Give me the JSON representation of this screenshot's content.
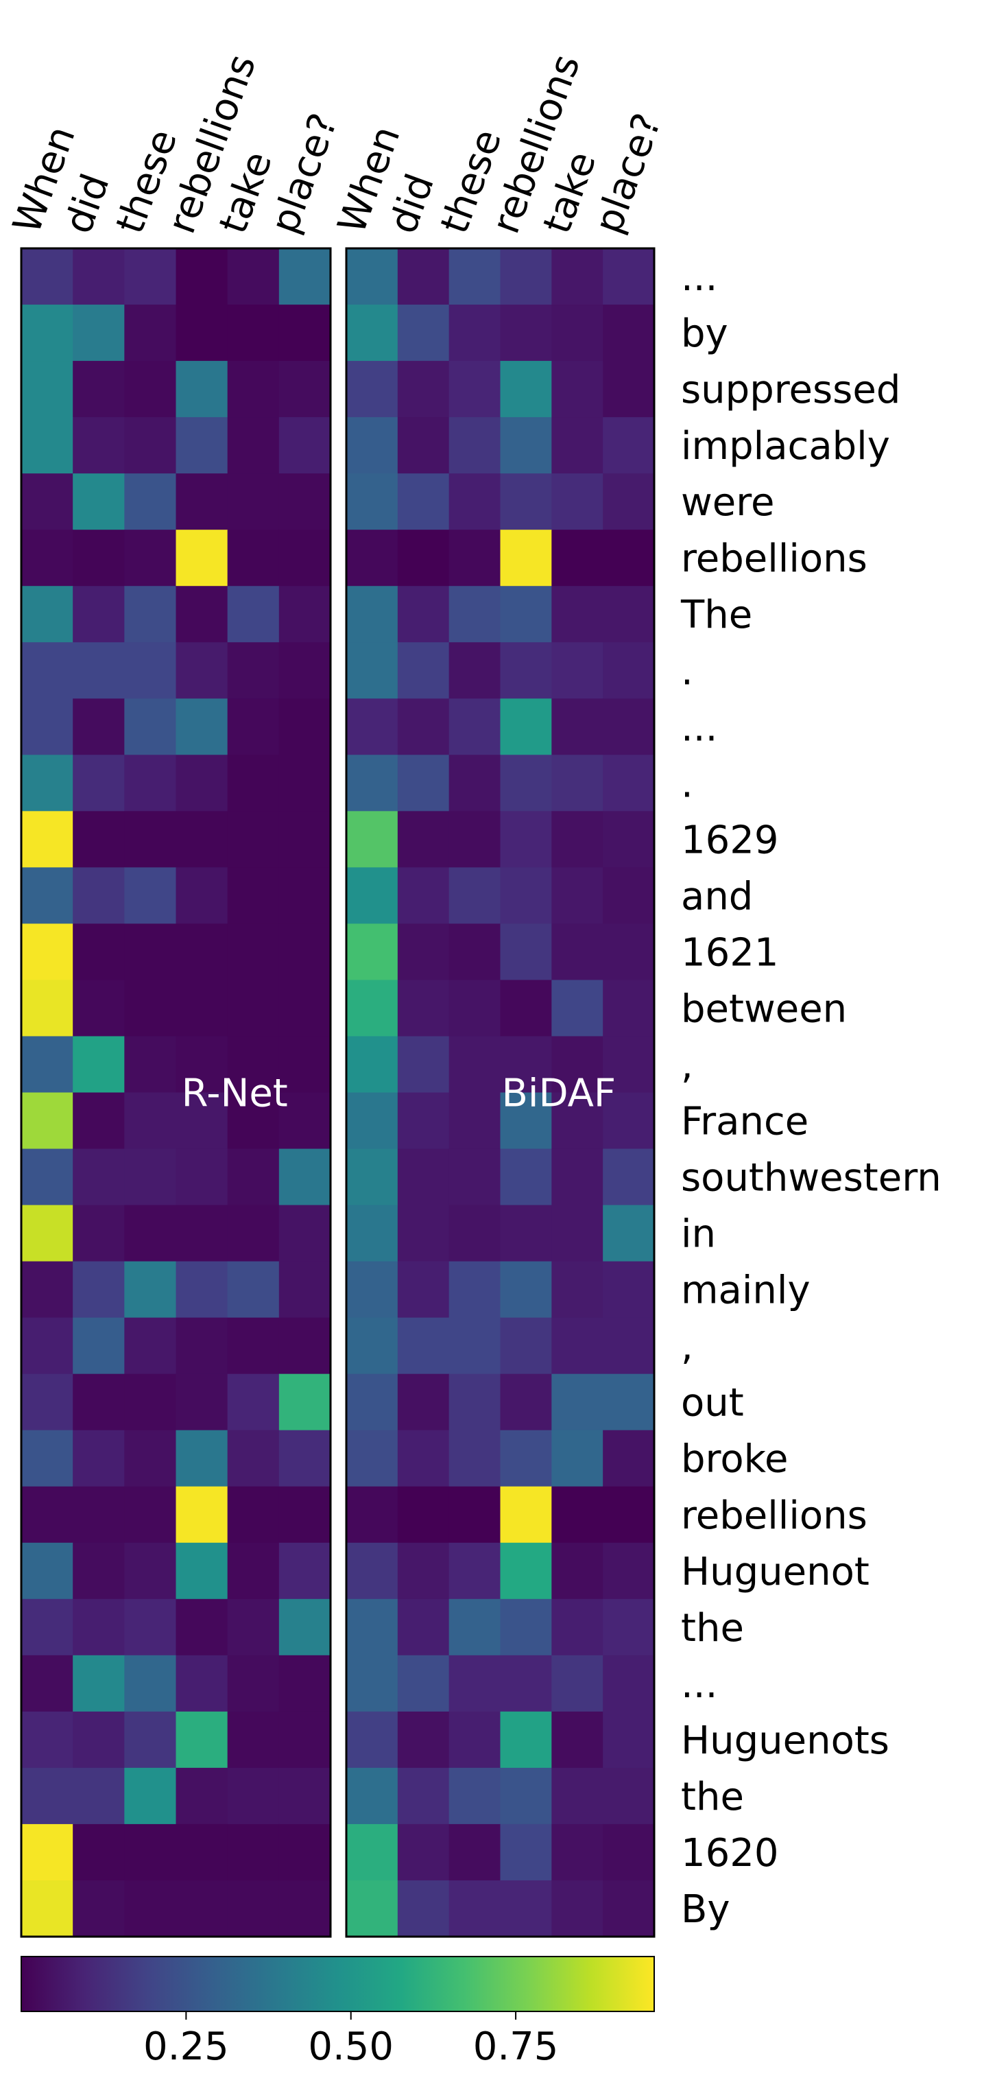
{
  "chart_data": {
    "type": "heatmap",
    "colormap": "viridis",
    "x": [
      "When",
      "did",
      "these",
      "rebellions",
      "take",
      "place?"
    ],
    "y": [
      "...",
      "by",
      "suppressed",
      "implacably",
      "were",
      "rebellions",
      "The",
      ".",
      "...",
      ".",
      "1629",
      "and",
      "1621",
      "between",
      ",",
      "France",
      "southwestern",
      "in",
      "mainly",
      ",",
      "out",
      "broke",
      "rebellions",
      "Huguenot",
      "the",
      "...",
      "Huguenots",
      "the",
      "1620",
      "By"
    ],
    "panels": [
      {
        "name": "R-Net",
        "values": [
          [
            0.15,
            0.08,
            0.1,
            0.0,
            0.03,
            0.35
          ],
          [
            0.45,
            0.4,
            0.03,
            0.0,
            0.0,
            0.0
          ],
          [
            0.45,
            0.03,
            0.02,
            0.38,
            0.02,
            0.03
          ],
          [
            0.45,
            0.06,
            0.05,
            0.22,
            0.02,
            0.08
          ],
          [
            0.04,
            0.45,
            0.25,
            0.02,
            0.02,
            0.02
          ],
          [
            0.02,
            0.01,
            0.02,
            0.95,
            0.01,
            0.01
          ],
          [
            0.42,
            0.08,
            0.22,
            0.02,
            0.2,
            0.04
          ],
          [
            0.2,
            0.2,
            0.2,
            0.07,
            0.03,
            0.02
          ],
          [
            0.2,
            0.03,
            0.25,
            0.35,
            0.02,
            0.01
          ],
          [
            0.42,
            0.12,
            0.08,
            0.05,
            0.01,
            0.01
          ],
          [
            0.95,
            0.01,
            0.01,
            0.01,
            0.01,
            0.01
          ],
          [
            0.3,
            0.15,
            0.2,
            0.05,
            0.01,
            0.01
          ],
          [
            0.95,
            0.01,
            0.01,
            0.01,
            0.01,
            0.01
          ],
          [
            0.93,
            0.02,
            0.01,
            0.01,
            0.01,
            0.01
          ],
          [
            0.3,
            0.55,
            0.03,
            0.02,
            0.01,
            0.01
          ],
          [
            0.82,
            0.02,
            0.06,
            0.06,
            0.01,
            0.02
          ],
          [
            0.25,
            0.07,
            0.07,
            0.06,
            0.03,
            0.38
          ],
          [
            0.88,
            0.04,
            0.02,
            0.02,
            0.02,
            0.05
          ],
          [
            0.04,
            0.18,
            0.4,
            0.18,
            0.22,
            0.05
          ],
          [
            0.08,
            0.28,
            0.06,
            0.03,
            0.02,
            0.02
          ],
          [
            0.12,
            0.02,
            0.02,
            0.03,
            0.1,
            0.62
          ],
          [
            0.25,
            0.08,
            0.04,
            0.38,
            0.07,
            0.12
          ],
          [
            0.02,
            0.02,
            0.02,
            0.95,
            0.01,
            0.01
          ],
          [
            0.32,
            0.03,
            0.05,
            0.48,
            0.02,
            0.1
          ],
          [
            0.12,
            0.08,
            0.1,
            0.02,
            0.04,
            0.42
          ],
          [
            0.03,
            0.45,
            0.32,
            0.08,
            0.03,
            0.02
          ],
          [
            0.1,
            0.08,
            0.15,
            0.6,
            0.02,
            0.02
          ],
          [
            0.15,
            0.15,
            0.48,
            0.04,
            0.05,
            0.05
          ],
          [
            0.95,
            0.01,
            0.01,
            0.01,
            0.01,
            0.01
          ],
          [
            0.93,
            0.03,
            0.02,
            0.02,
            0.02,
            0.02
          ]
        ]
      },
      {
        "name": "BiDAF",
        "values": [
          [
            0.35,
            0.06,
            0.22,
            0.15,
            0.06,
            0.1
          ],
          [
            0.45,
            0.22,
            0.08,
            0.06,
            0.05,
            0.03
          ],
          [
            0.18,
            0.06,
            0.1,
            0.45,
            0.06,
            0.03
          ],
          [
            0.28,
            0.05,
            0.15,
            0.3,
            0.06,
            0.1
          ],
          [
            0.3,
            0.2,
            0.08,
            0.15,
            0.12,
            0.07
          ],
          [
            0.02,
            0.0,
            0.02,
            0.95,
            0.0,
            0.0
          ],
          [
            0.35,
            0.08,
            0.22,
            0.25,
            0.06,
            0.06
          ],
          [
            0.35,
            0.18,
            0.05,
            0.12,
            0.1,
            0.08
          ],
          [
            0.1,
            0.06,
            0.12,
            0.52,
            0.05,
            0.05
          ],
          [
            0.3,
            0.22,
            0.05,
            0.15,
            0.13,
            0.1
          ],
          [
            0.7,
            0.03,
            0.03,
            0.1,
            0.04,
            0.05
          ],
          [
            0.48,
            0.08,
            0.15,
            0.12,
            0.06,
            0.04
          ],
          [
            0.67,
            0.04,
            0.03,
            0.15,
            0.05,
            0.05
          ],
          [
            0.6,
            0.06,
            0.05,
            0.02,
            0.2,
            0.06
          ],
          [
            0.48,
            0.15,
            0.06,
            0.06,
            0.04,
            0.06
          ],
          [
            0.38,
            0.08,
            0.06,
            0.32,
            0.06,
            0.08
          ],
          [
            0.42,
            0.06,
            0.06,
            0.2,
            0.06,
            0.18
          ],
          [
            0.38,
            0.06,
            0.05,
            0.06,
            0.06,
            0.4
          ],
          [
            0.3,
            0.08,
            0.2,
            0.28,
            0.07,
            0.08
          ],
          [
            0.32,
            0.2,
            0.2,
            0.15,
            0.08,
            0.08
          ],
          [
            0.25,
            0.04,
            0.15,
            0.06,
            0.3,
            0.3
          ],
          [
            0.22,
            0.08,
            0.15,
            0.22,
            0.32,
            0.05
          ],
          [
            0.02,
            0.0,
            0.0,
            0.95,
            0.0,
            0.0
          ],
          [
            0.15,
            0.06,
            0.1,
            0.58,
            0.03,
            0.05
          ],
          [
            0.3,
            0.08,
            0.3,
            0.25,
            0.08,
            0.1
          ],
          [
            0.3,
            0.22,
            0.1,
            0.1,
            0.15,
            0.08
          ],
          [
            0.18,
            0.04,
            0.08,
            0.55,
            0.03,
            0.08
          ],
          [
            0.35,
            0.12,
            0.22,
            0.25,
            0.07,
            0.07
          ],
          [
            0.6,
            0.06,
            0.03,
            0.2,
            0.04,
            0.03
          ],
          [
            0.62,
            0.15,
            0.1,
            0.1,
            0.06,
            0.04
          ]
        ]
      }
    ],
    "clim": [
      0,
      0.96
    ],
    "cticks": [
      0.25,
      {
        "value": 0.5,
        "label": "0.50"
      },
      0.75
    ]
  }
}
